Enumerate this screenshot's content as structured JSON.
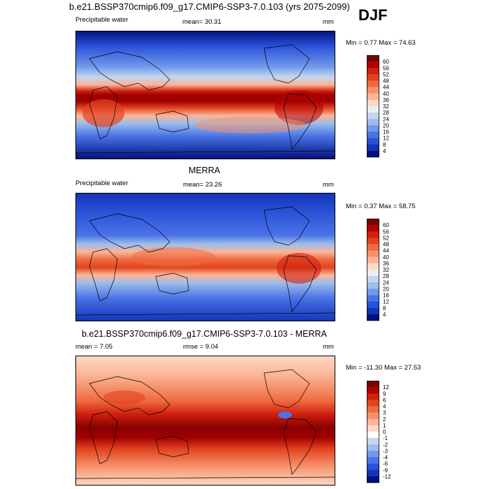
{
  "header": {
    "main_title": "b.e21.BSSP370cmip6.f09_g17.CMIP6-SSP3-7.0.103 (yrs 2075-2099)",
    "season": "DJF"
  },
  "panels": [
    {
      "id": "model",
      "title": "",
      "left_label": "Precipitable water",
      "center_label": "mean=  30.31",
      "units": "mm",
      "minmax": "Min =   0.77 Max =  74.63"
    },
    {
      "id": "obs",
      "title": "MERRA",
      "left_label": "Precipitable water",
      "center_label": "mean=  23.26",
      "units": "mm",
      "minmax": "Min =   0.37 Max =  58.75"
    },
    {
      "id": "diff",
      "title": "b.e21.BSSP370cmip6.f09_g17.CMIP6-SSP3-7.0.103 - MERRA",
      "left_label": "mean =   7.05",
      "center_label": "rmse =   9.04",
      "units": "mm",
      "minmax": "Min = -11.30 Max =  27.53"
    }
  ],
  "chart_data": [
    {
      "type": "heatmap",
      "name": "model precipitable water",
      "projection": "global cylindrical equidistant, centered on 180",
      "colorbar_ticks": [
        "60",
        "56",
        "52",
        "48",
        "44",
        "40",
        "36",
        "32",
        "28",
        "24",
        "20",
        "16",
        "12",
        "8",
        "4"
      ],
      "colorbar_colors": [
        "#7a0000",
        "#b00000",
        "#d0200e",
        "#e2431f",
        "#ef6a3f",
        "#f6916a",
        "#fbb597",
        "#fddac6",
        "#eaeef5",
        "#c4d5ee",
        "#9ebdeb",
        "#7199ea",
        "#4a73e6",
        "#2952d9",
        "#1334b7",
        "#00117d"
      ],
      "mean": 30.31,
      "min": 0.77,
      "max": 74.63,
      "units": "mm"
    },
    {
      "type": "heatmap",
      "name": "MERRA precipitable water",
      "projection": "global cylindrical equidistant, centered on 180",
      "colorbar_ticks": [
        "60",
        "56",
        "52",
        "48",
        "44",
        "40",
        "36",
        "32",
        "28",
        "24",
        "20",
        "16",
        "12",
        "8",
        "4"
      ],
      "colorbar_colors": [
        "#7a0000",
        "#b00000",
        "#d0200e",
        "#e2431f",
        "#ef6a3f",
        "#f6916a",
        "#fbb597",
        "#fddac6",
        "#eaeef5",
        "#c4d5ee",
        "#9ebdeb",
        "#7199ea",
        "#4a73e6",
        "#2952d9",
        "#1334b7",
        "#00117d"
      ],
      "mean": 23.26,
      "min": 0.37,
      "max": 58.75,
      "units": "mm"
    },
    {
      "type": "heatmap",
      "name": "difference model - MERRA",
      "projection": "global cylindrical equidistant, centered on 180",
      "colorbar_ticks": [
        "12",
        "9",
        "6",
        "4",
        "3",
        "2",
        "1",
        "0",
        "-1",
        "-2",
        "-3",
        "-4",
        "-6",
        "-9",
        "-12"
      ],
      "colorbar_colors": [
        "#7a0000",
        "#b00000",
        "#d0200e",
        "#e2431f",
        "#ef6a3f",
        "#f6916a",
        "#fbb597",
        "#fddac6",
        "#ffffff",
        "#c4d5ee",
        "#9ebdeb",
        "#7199ea",
        "#4a73e6",
        "#2952d9",
        "#1334b7",
        "#00117d"
      ],
      "mean": 7.05,
      "rmse": 9.04,
      "min": -11.3,
      "max": 27.53,
      "units": "mm"
    }
  ]
}
